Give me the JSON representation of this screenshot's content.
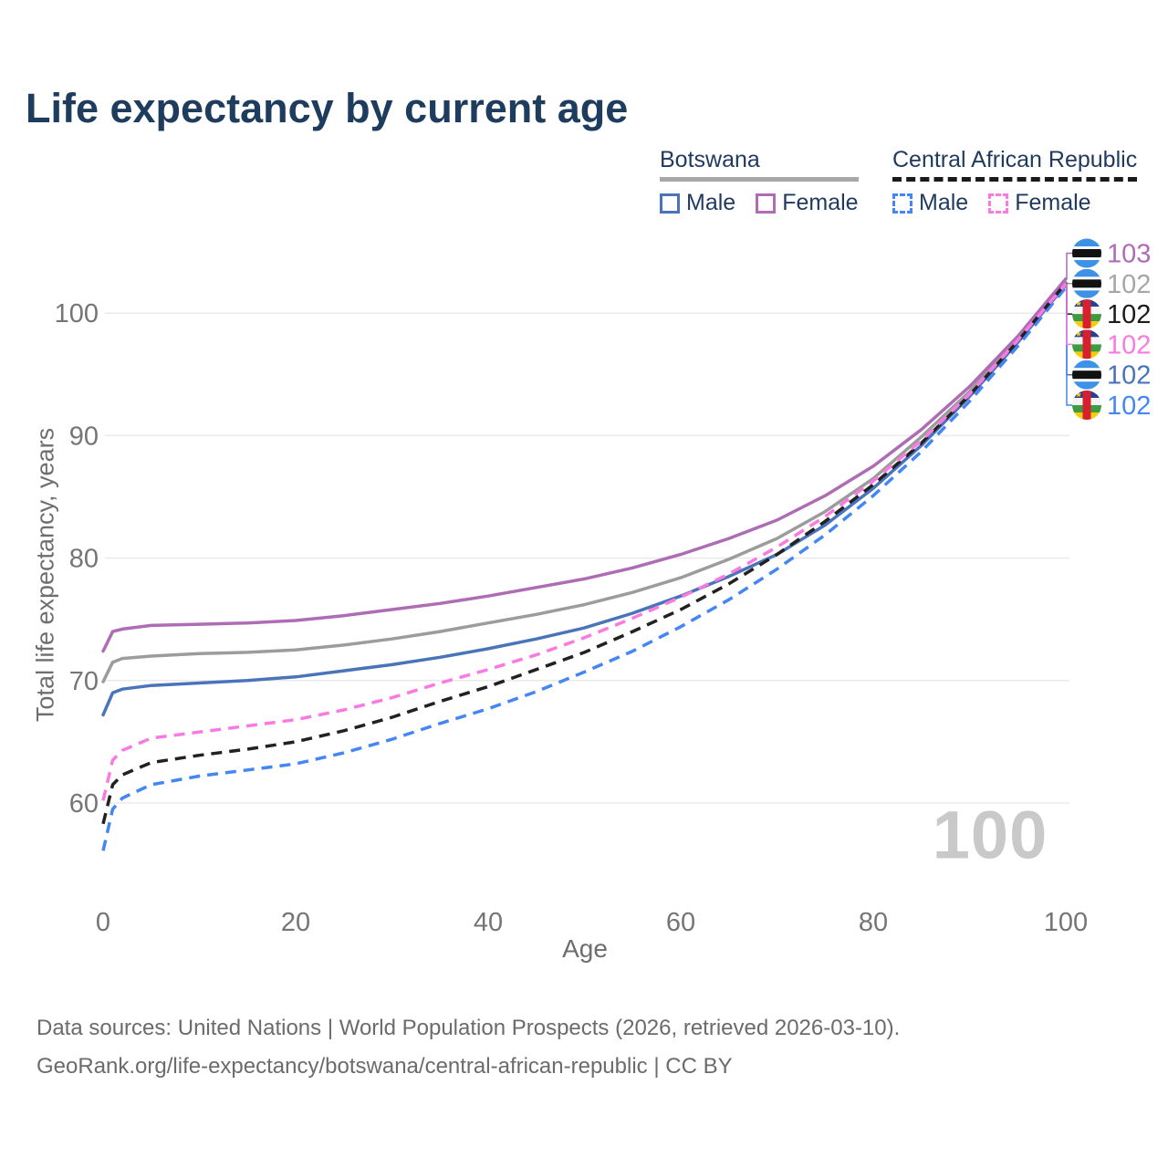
{
  "title": "Life expectancy by current age",
  "legend": {
    "groups": [
      {
        "country": "Botswana",
        "line_style": "solid",
        "underline_color": "#a8a8a8",
        "items": [
          {
            "label": "Male",
            "color": "#4a74ba"
          },
          {
            "label": "Female",
            "color": "#ad6cb4"
          }
        ]
      },
      {
        "country": "Central African Republic",
        "line_style": "dashed",
        "underline_color": "#1a1a1a",
        "items": [
          {
            "label": "Male",
            "color": "#4386f4"
          },
          {
            "label": "Female",
            "color": "#fb7ae2"
          }
        ]
      }
    ]
  },
  "chart_data": {
    "type": "line",
    "title": "Life expectancy by current age",
    "xlabel": "Age",
    "ylabel": "Total life expectancy, years",
    "xlim": [
      0,
      100
    ],
    "ylim": [
      55,
      105
    ],
    "x_ticks": [
      0,
      20,
      40,
      60,
      80,
      100
    ],
    "y_ticks": [
      60,
      70,
      80,
      90,
      100
    ],
    "grid": "horizontal",
    "legend_position": "top-right",
    "watermark": "100",
    "ages": [
      0,
      1,
      2,
      5,
      10,
      15,
      20,
      25,
      30,
      35,
      40,
      45,
      50,
      55,
      60,
      65,
      70,
      75,
      80,
      85,
      90,
      95,
      100
    ],
    "series": [
      {
        "id": "botswana-male",
        "name": "Botswana Male",
        "country": "Botswana",
        "country_code": "bw",
        "sex": "Male",
        "color": "#4a74ba",
        "dashed": false,
        "end_label": "102",
        "end_label_color": "#4a74ba",
        "label_row": 4,
        "values": [
          67.2,
          69.0,
          69.3,
          69.6,
          69.8,
          70.0,
          70.3,
          70.8,
          71.3,
          71.9,
          72.6,
          73.4,
          74.3,
          75.5,
          76.9,
          78.5,
          80.3,
          82.7,
          85.7,
          89.2,
          93.2,
          97.6,
          102.3
        ]
      },
      {
        "id": "botswana-both",
        "name": "Botswana Both sexes",
        "country": "Botswana",
        "country_code": "bw",
        "sex": "Both",
        "color": "#9c9c9c",
        "dashed": false,
        "end_label": "102",
        "end_label_color": "#a6a6a6",
        "label_row": 1,
        "values": [
          69.9,
          71.5,
          71.8,
          72.0,
          72.2,
          72.3,
          72.5,
          72.9,
          73.4,
          74.0,
          74.7,
          75.4,
          76.2,
          77.2,
          78.4,
          79.9,
          81.6,
          83.8,
          86.5,
          89.9,
          93.6,
          97.9,
          102.5
        ]
      },
      {
        "id": "botswana-female",
        "name": "Botswana Female",
        "country": "Botswana",
        "country_code": "bw",
        "sex": "Female",
        "color": "#ad6cb4",
        "dashed": false,
        "end_label": "103",
        "end_label_color": "#ad6cb4",
        "label_row": 0,
        "values": [
          72.4,
          74.0,
          74.2,
          74.5,
          74.6,
          74.7,
          74.9,
          75.3,
          75.8,
          76.3,
          76.9,
          77.6,
          78.3,
          79.2,
          80.3,
          81.6,
          83.1,
          85.1,
          87.5,
          90.5,
          94.0,
          98.1,
          102.8
        ]
      },
      {
        "id": "car-male",
        "name": "Central African Republic Male",
        "country": "Central African Republic",
        "country_code": "cf",
        "sex": "Male",
        "color": "#4386f4",
        "dashed": true,
        "end_label": "102",
        "end_label_color": "#4386f4",
        "label_row": 5,
        "values": [
          56.1,
          59.5,
          60.4,
          61.5,
          62.2,
          62.7,
          63.2,
          64.1,
          65.2,
          66.5,
          67.7,
          69.1,
          70.7,
          72.4,
          74.4,
          76.6,
          79.1,
          81.9,
          85.1,
          88.7,
          92.8,
          97.3,
          102.1
        ]
      },
      {
        "id": "car-both",
        "name": "Central African Republic Both sexes",
        "country": "Central African Republic",
        "country_code": "cf",
        "sex": "Both",
        "color": "#212121",
        "dashed": true,
        "end_label": "102",
        "end_label_color": "#1c1c1c",
        "label_row": 2,
        "values": [
          58.3,
          61.5,
          62.3,
          63.3,
          63.9,
          64.4,
          65.0,
          65.9,
          67.0,
          68.3,
          69.5,
          70.9,
          72.3,
          74.0,
          75.8,
          77.9,
          80.3,
          83.0,
          86.0,
          89.4,
          93.3,
          97.7,
          102.45
        ]
      },
      {
        "id": "car-female",
        "name": "Central African Republic Female",
        "country": "Central African Republic",
        "country_code": "cf",
        "sex": "Female",
        "color": "#fb7ae2",
        "dashed": true,
        "end_label": "102",
        "end_label_color": "#fb7ae2",
        "label_row": 3,
        "values": [
          60.2,
          63.5,
          64.3,
          65.3,
          65.8,
          66.3,
          66.8,
          67.6,
          68.6,
          69.8,
          70.9,
          72.1,
          73.5,
          75.1,
          76.8,
          78.7,
          80.9,
          83.4,
          86.3,
          89.6,
          93.4,
          97.8,
          102.4
        ]
      }
    ],
    "colors": {
      "grid": "#eaeaea",
      "tick_text": "#757575",
      "axis_title": "#6e6e6e",
      "watermark": "#c9c9c9",
      "flag_botswana": {
        "blue": "#3e92e6",
        "white": "#ffffff",
        "black": "#111111"
      },
      "flag_car": {
        "blue": "#2c3e90",
        "white": "#f4f4f4",
        "green": "#3f9b3f",
        "yellow": "#f6cd0c",
        "red": "#d7202e"
      }
    }
  },
  "footer": {
    "line1": "Data sources: United Nations | World Population Prospects (2026, retrieved 2026-03-10).",
    "line2": "GeoRank.org/life-expectancy/botswana/central-african-republic | CC BY"
  }
}
